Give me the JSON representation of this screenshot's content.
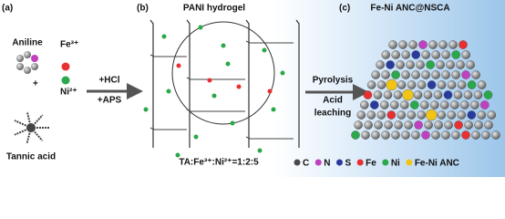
{
  "panel_a": {
    "label": "(a)",
    "aniline": "Aniline",
    "fe": "Fe³⁺",
    "plus": "+",
    "ni": "Ni²⁺",
    "tannic_acid": "Tannic acid"
  },
  "arrow_1": {
    "line1": "+HCl",
    "line2": "+APS"
  },
  "panel_b": {
    "label": "(b)",
    "title": "PANI hydrogel",
    "ratio": "TA:Fe³⁺:Ni²⁺=1:2:5"
  },
  "arrow_2": {
    "line1": "Pyrolysis",
    "line2": "Acid",
    "line3": "leaching"
  },
  "panel_c": {
    "label": "(c)",
    "title": "Fe-Ni ANC@NSCA"
  },
  "legend": [
    {
      "label": "C",
      "color": "#4a4a4a"
    },
    {
      "label": "N",
      "color": "#c040c0"
    },
    {
      "label": "S",
      "color": "#2a3a9a"
    },
    {
      "label": "Fe",
      "color": "#e83030"
    },
    {
      "label": "Ni",
      "color": "#2aa84a"
    },
    {
      "label": "Fe-Ni ANC",
      "color": "#f2c418"
    }
  ]
}
